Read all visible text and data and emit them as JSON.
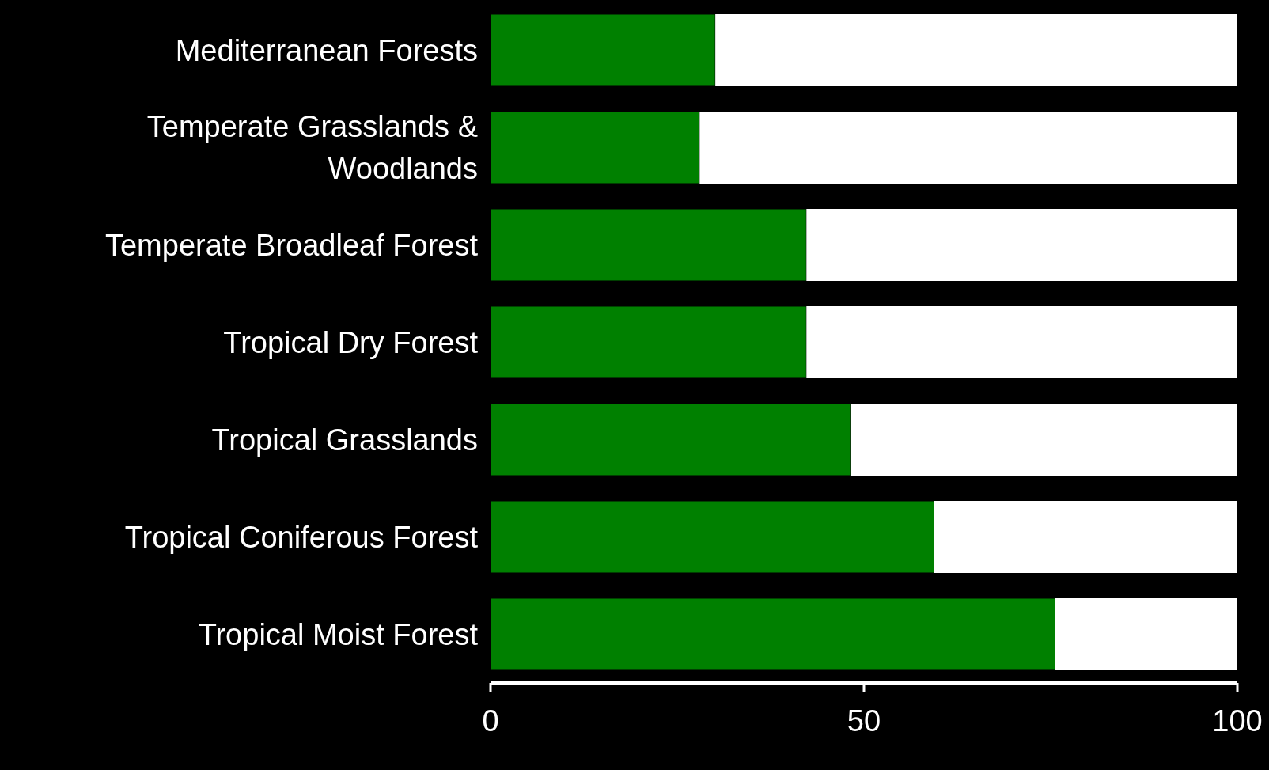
{
  "chart_data": {
    "type": "bar",
    "orientation": "horizontal",
    "stacked": true,
    "categories": [
      "Mediterranean Forests",
      "Temperate Grasslands & Woodlands",
      "Temperate Broadleaf Forest",
      "Tropical Dry Forest",
      "Tropical Grasslands",
      "Tropical Coniferous Forest",
      "Tropical Moist Forest"
    ],
    "series": [
      {
        "color": "#008000",
        "values": [
          30.1,
          28.0,
          42.3,
          42.3,
          48.3,
          59.4,
          75.6
        ]
      },
      {
        "color": "#ffffff",
        "values": [
          69.9,
          72.0,
          57.7,
          57.7,
          51.7,
          40.6,
          24.4
        ]
      }
    ],
    "xlim": [
      0,
      100
    ],
    "xticks": [
      0,
      50,
      100
    ],
    "grid": false,
    "legend": false
  }
}
